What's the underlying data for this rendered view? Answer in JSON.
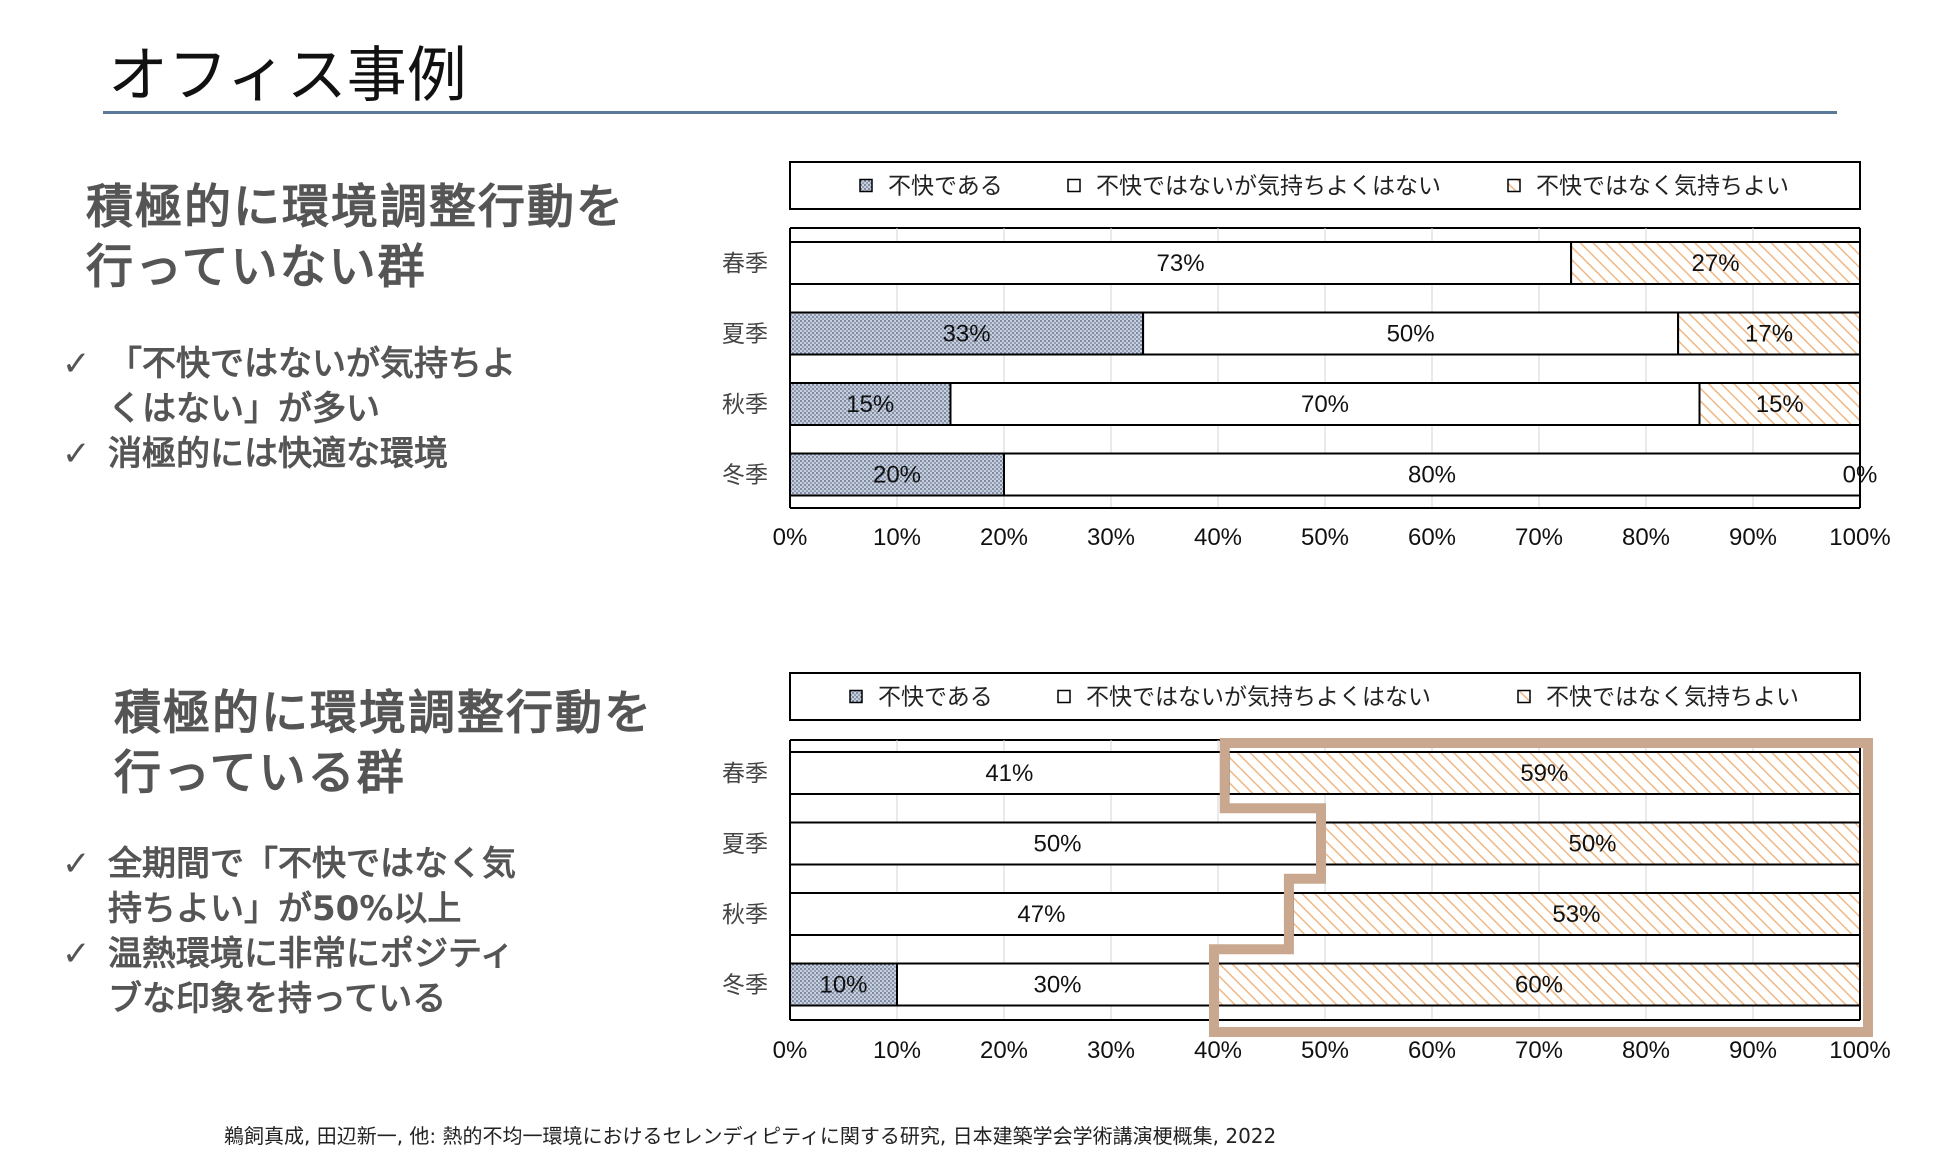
{
  "slide": {
    "title": "オフィス事例"
  },
  "groups": [
    {
      "heading_lines": [
        "積極的に環境調整行動を",
        "行っていない群"
      ],
      "bullets": [
        "「不快ではないが気持ちよ\nくはない」が多い",
        "消極的には快適な環境"
      ]
    },
    {
      "heading_lines": [
        "積極的に環境調整行動を",
        "行っている群"
      ],
      "bullets": [
        "全期間で「不快ではなく気\n持ちよい」が50%以上",
        "温熱環境に非常にポジティ\nブな印象を持っている"
      ]
    }
  ],
  "bullet_mark": "✓",
  "citation": "鵜飼真成, 田辺新一, 他: 熱的不均一環境におけるセレンディピティに関する研究, 日本建築学会学術講演梗概集, 2022",
  "chart_data": [
    {
      "type": "bar",
      "orientation": "horizontal",
      "stacked": true,
      "normalized": true,
      "categories": [
        "春季",
        "夏季",
        "秋季",
        "冬季"
      ],
      "series": [
        {
          "name": "不快である",
          "values": [
            0,
            33,
            15,
            20
          ],
          "pattern": "dots",
          "color": "#aab6c9"
        },
        {
          "name": "不快ではないが気持ちよくはない",
          "values": [
            73,
            50,
            70,
            80
          ],
          "pattern": "none",
          "color": "#ffffff"
        },
        {
          "name": "不快ではなく気持ちよい",
          "values": [
            27,
            17,
            15,
            0
          ],
          "pattern": "hatch",
          "color": "#f3c9a0"
        }
      ],
      "data_labels": [
        [
          "",
          "73%",
          "27%"
        ],
        [
          "33%",
          "50%",
          "17%"
        ],
        [
          "15%",
          "70%",
          "15%"
        ],
        [
          "20%",
          "80%",
          "0%"
        ]
      ],
      "x_ticks": [
        "0%",
        "10%",
        "20%",
        "30%",
        "40%",
        "50%",
        "60%",
        "70%",
        "80%",
        "90%",
        "100%"
      ],
      "xlim": [
        0,
        100
      ],
      "legend": "top",
      "grid": "vertical",
      "highlight_outline": false
    },
    {
      "type": "bar",
      "orientation": "horizontal",
      "stacked": true,
      "normalized": true,
      "categories": [
        "春季",
        "夏季",
        "秋季",
        "冬季"
      ],
      "series": [
        {
          "name": "不快である",
          "values": [
            0,
            0,
            0,
            10
          ],
          "pattern": "dots",
          "color": "#aab6c9"
        },
        {
          "name": "不快ではないが気持ちよくはない",
          "values": [
            41,
            50,
            47,
            30
          ],
          "pattern": "none",
          "color": "#ffffff"
        },
        {
          "name": "不快ではなく気持ちよい",
          "values": [
            59,
            50,
            53,
            60
          ],
          "pattern": "hatch",
          "color": "#f3c9a0"
        }
      ],
      "data_labels": [
        [
          "",
          "41%",
          "59%"
        ],
        [
          "",
          "50%",
          "50%"
        ],
        [
          "",
          "47%",
          "53%"
        ],
        [
          "10%",
          "30%",
          "60%"
        ]
      ],
      "x_ticks": [
        "0%",
        "10%",
        "20%",
        "30%",
        "40%",
        "50%",
        "60%",
        "70%",
        "80%",
        "90%",
        "100%"
      ],
      "xlim": [
        0,
        100
      ],
      "legend": "top",
      "grid": "vertical",
      "highlight_outline": true,
      "highlight_color": "#c9a88f"
    }
  ]
}
